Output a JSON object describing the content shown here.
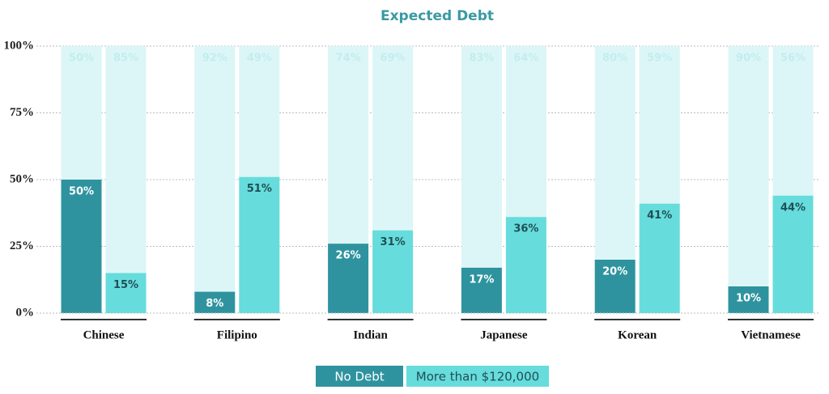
{
  "chart_data": {
    "type": "bar",
    "title": "Expected Debt",
    "categories": [
      "Chinese",
      "Filipino",
      "Indian",
      "Japanese",
      "Korean",
      "Vietnamese"
    ],
    "series": [
      {
        "name": "No Debt",
        "color": "#2e939f",
        "values": [
          50,
          8,
          26,
          17,
          20,
          10
        ],
        "value_labels": [
          "50%",
          "8%",
          "26%",
          "17%",
          "20%",
          "10%"
        ],
        "remainder_values": [
          50,
          92,
          74,
          83,
          80,
          90
        ],
        "remainder_labels": [
          "50%",
          "92%",
          "74%",
          "83%",
          "80%",
          "90%"
        ]
      },
      {
        "name": "More than $120,000",
        "color": "#67dcdc",
        "values": [
          15,
          51,
          31,
          36,
          41,
          44
        ],
        "value_labels": [
          "15%",
          "51%",
          "31%",
          "36%",
          "41%",
          "44%"
        ],
        "remainder_values": [
          85,
          49,
          69,
          64,
          59,
          56
        ],
        "remainder_labels": [
          "85%",
          "49%",
          "69%",
          "64%",
          "59%",
          "56%"
        ]
      }
    ],
    "remainder_color": "#dcf6f7",
    "ylim": [
      0,
      100
    ],
    "yticks": [
      {
        "value": 0,
        "label": "0%"
      },
      {
        "value": 25,
        "label": "25%"
      },
      {
        "value": 50,
        "label": "50%"
      },
      {
        "value": 75,
        "label": "75%"
      },
      {
        "value": 100,
        "label": "100%"
      }
    ],
    "grid": true,
    "legend": "bottom"
  }
}
